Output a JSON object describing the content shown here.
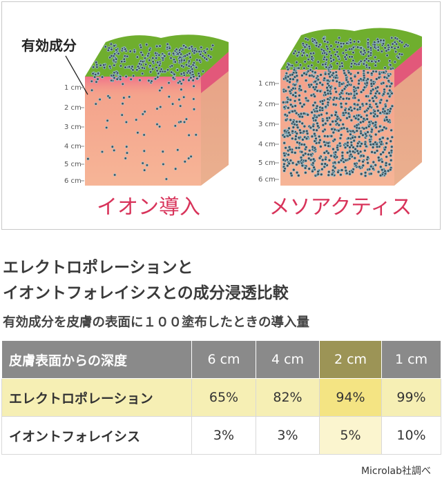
{
  "illustration": {
    "label": "有効成分",
    "left": {
      "depths": [
        "1 cm",
        "2 cm",
        "3 cm",
        "4 cm",
        "5 cm",
        "6 cm"
      ],
      "caption": "イオン導入"
    },
    "right": {
      "depths": [
        "1 cm",
        "2 cm",
        "3 cm",
        "4 cm",
        "5 cm",
        "6 cm"
      ],
      "caption": "メソアクティス"
    }
  },
  "title": [
    "エレクトロポレーションと",
    "イオントフォレイシスとの成分浸透比較"
  ],
  "subtitle": "有効成分を皮膚の表面に１００塗布したときの導入量",
  "table": {
    "header": [
      "皮膚表面からの深度",
      "6 cm",
      "4 cm",
      "2 cm",
      "1 cm"
    ],
    "rows": [
      [
        "エレクトロポレーション",
        "65%",
        "82%",
        "94%",
        "99%"
      ],
      [
        "イオントフォレイシス",
        "3%",
        "3%",
        "5%",
        "10%"
      ]
    ]
  },
  "source": "Microlab社調べ"
}
